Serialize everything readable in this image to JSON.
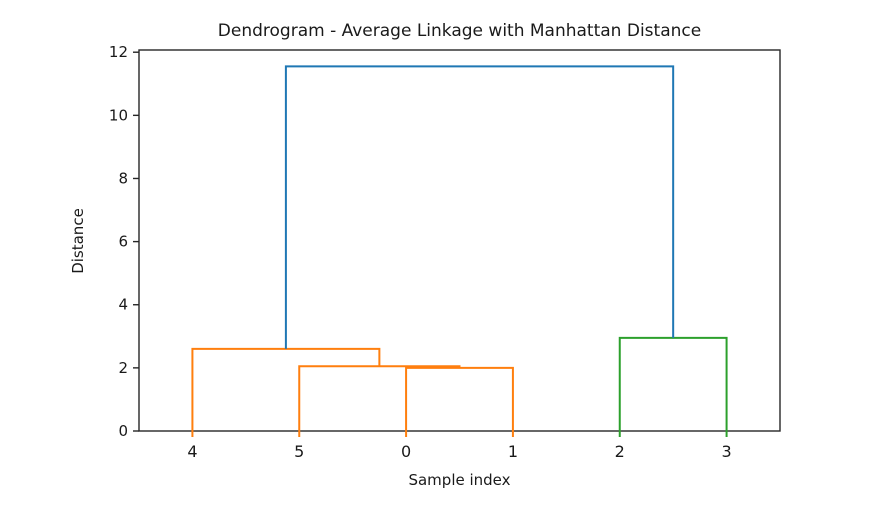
{
  "figure": {
    "background": "#ffffff"
  },
  "chart_data": {
    "type": "dendrogram",
    "title": "Dendrogram - Average Linkage with Manhattan Distance",
    "xlabel": "Sample index",
    "ylabel": "Distance",
    "x_tick_labels": [
      "4",
      "5",
      "0",
      "1",
      "2",
      "3"
    ],
    "leaf_positions": [
      5,
      15,
      25,
      35,
      45,
      55
    ],
    "leaf_tick_colors": [
      "#ff7f0e",
      "#ff7f0e",
      "#ff7f0e",
      "#ff7f0e",
      "#2ca02c",
      "#2ca02c"
    ],
    "xlim": [
      0,
      60
    ],
    "ylim": [
      0,
      12.07
    ],
    "yticks": [
      0,
      2,
      4,
      6,
      8,
      10,
      12
    ],
    "grid": false,
    "legend": null,
    "colors": {
      "cluster_left": "#ff7f0e",
      "cluster_right": "#2ca02c",
      "root_link": "#1f77b4",
      "axis": "#262626",
      "text": "#1a1a1a"
    },
    "links": [
      {
        "children": [
          "0",
          "1"
        ],
        "x1": 25,
        "y1": 0,
        "x2": 35,
        "y2": 0,
        "height": 2.0,
        "color": "#ff7f0e"
      },
      {
        "children": [
          "5",
          "(0,1)"
        ],
        "x1": 15,
        "y1": 0,
        "x2": 30,
        "y2": 2.0,
        "height": 2.05,
        "color": "#ff7f0e"
      },
      {
        "children": [
          "4",
          "(5,0,1)"
        ],
        "x1": 5,
        "y1": 0,
        "x2": 22.5,
        "y2": 2.05,
        "height": 2.6,
        "color": "#ff7f0e"
      },
      {
        "children": [
          "2",
          "3"
        ],
        "x1": 45,
        "y1": 0,
        "x2": 55,
        "y2": 0,
        "height": 2.95,
        "color": "#2ca02c"
      },
      {
        "children": [
          "(4,5,0,1)",
          "(2,3)"
        ],
        "x1": 13.75,
        "y1": 2.6,
        "x2": 50,
        "y2": 2.95,
        "height": 11.55,
        "color": "#1f77b4"
      }
    ]
  }
}
